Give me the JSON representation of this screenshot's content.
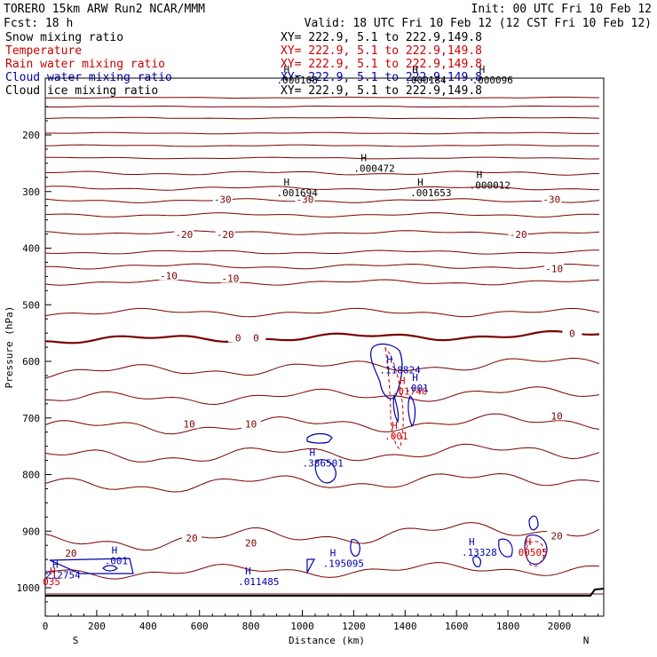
{
  "header": {
    "left1": "TORERO  15km ARW  Run2    NCAR/MMM",
    "left2": "Fcst:    18 h",
    "init": "Init: 00 UTC Fri 10 Feb 12",
    "valid": "Valid: 18 UTC Fri 10 Feb 12 (12 CST Fri 10 Feb 12)",
    "legend": [
      {
        "name": "Snow mixing ratio",
        "xy": "XY= 222.9,  5.1 to 222.9,149.8",
        "color": "#000000"
      },
      {
        "name": "Temperature",
        "xy": "XY= 222.9,  5.1 to 222.9,149.8",
        "color": "#cc0000"
      },
      {
        "name": "Rain water mixing ratio",
        "xy": "XY= 222.9,  5.1 to 222.9,149.8",
        "color": "#cc0000"
      },
      {
        "name": "Cloud water mixing ratio",
        "xy": "XY= 222.9,  5.1 to 222.9,149.8",
        "color": "#0000aa"
      },
      {
        "name": "Cloud ice mixing ratio",
        "xy": "XY= 222.9,  5.1 to 222.9,149.8",
        "color": "#000000"
      }
    ]
  },
  "chart_data": {
    "type": "line",
    "subtype": "vertical cross-section",
    "xlabel": "Distance (km)",
    "ylabel": "Pressure (hPa)",
    "xlim": [
      0,
      2180
    ],
    "ylim": [
      1050,
      100
    ],
    "xticks": [
      "0",
      "200",
      "400",
      "600",
      "800",
      "1000",
      "1200",
      "1400",
      "1600",
      "1800",
      "2000"
    ],
    "yticks": [
      "200",
      "300",
      "400",
      "500",
      "600",
      "700",
      "800",
      "900",
      "1000"
    ],
    "x_end_labels": {
      "left": "S",
      "right": "N"
    },
    "temperature_isotherm_labels": [
      {
        "text": "-30",
        "x": 690,
        "p": 315
      },
      {
        "text": "-30",
        "x": 1010,
        "p": 315
      },
      {
        "text": "-30",
        "x": 1970,
        "p": 315
      },
      {
        "text": "-20",
        "x": 540,
        "p": 377
      },
      {
        "text": "-20",
        "x": 700,
        "p": 377
      },
      {
        "text": "-20",
        "x": 1840,
        "p": 377
      },
      {
        "text": "-10",
        "x": 480,
        "p": 450
      },
      {
        "text": "-10",
        "x": 720,
        "p": 455
      },
      {
        "text": "-10",
        "x": 1980,
        "p": 438
      },
      {
        "text": "0",
        "x": 750,
        "p": 560
      },
      {
        "text": "0",
        "x": 820,
        "p": 560
      },
      {
        "text": "0",
        "x": 2050,
        "p": 552
      },
      {
        "text": "10",
        "x": 560,
        "p": 712
      },
      {
        "text": "10",
        "x": 800,
        "p": 712
      },
      {
        "text": "10",
        "x": 1990,
        "p": 698
      },
      {
        "text": "20",
        "x": 570,
        "p": 914
      },
      {
        "text": "20",
        "x": 800,
        "p": 922
      },
      {
        "text": "20",
        "x": 1990,
        "p": 910
      },
      {
        "text": "20",
        "x": 100,
        "p": 940
      }
    ],
    "field_maxima": [
      {
        "text": ".000168",
        "x": 900,
        "p": 106,
        "color": "#000000"
      },
      {
        "text": ".000184",
        "x": 1400,
        "p": 106,
        "color": "#000000"
      },
      {
        "text": ".000096",
        "x": 1660,
        "p": 106,
        "color": "#000000"
      },
      {
        "text": ".000472",
        "x": 1200,
        "p": 262,
        "color": "#000000"
      },
      {
        "text": ".001694",
        "x": 900,
        "p": 305,
        "color": "#000000"
      },
      {
        "text": ".001653",
        "x": 1420,
        "p": 305,
        "color": "#000000"
      },
      {
        "text": ".000012",
        "x": 1650,
        "p": 292,
        "color": "#000000"
      },
      {
        "text": ".118824",
        "x": 1300,
        "p": 618,
        "color": "#0000aa"
      },
      {
        "text": ".01740",
        "x": 1350,
        "p": 656,
        "color": "#cc0000"
      },
      {
        "text": ".001",
        "x": 1400,
        "p": 650,
        "color": "#0000aa"
      },
      {
        "text": ".001",
        "x": 1320,
        "p": 735,
        "color": "#cc0000"
      },
      {
        "text": ".386501",
        "x": 1000,
        "p": 783,
        "color": "#0000aa"
      },
      {
        "text": ".001",
        "x": 230,
        "p": 955,
        "color": "#0000aa"
      },
      {
        "text": "212754",
        "x": 0,
        "p": 980,
        "color": "#0000aa"
      },
      {
        "text": "035",
        "x": -10,
        "p": 992,
        "color": "#cc0000"
      },
      {
        "text": ".011485",
        "x": 750,
        "p": 992,
        "color": "#0000aa"
      },
      {
        "text": ".195095",
        "x": 1080,
        "p": 960,
        "color": "#0000aa"
      },
      {
        "text": ".13328",
        "x": 1620,
        "p": 940,
        "color": "#0000aa"
      },
      {
        "text": "00505",
        "x": 1840,
        "p": 940,
        "color": "#cc0000"
      }
    ]
  }
}
